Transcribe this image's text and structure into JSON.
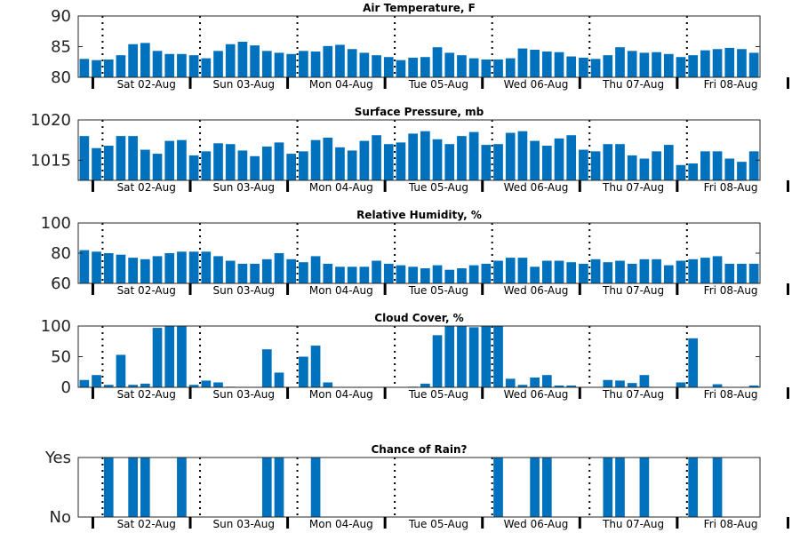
{
  "chart_data": [
    {
      "type": "bar",
      "title": "Air Temperature, F",
      "ylim": [
        80,
        90
      ],
      "yticks": [
        "80",
        "85",
        "90"
      ],
      "color": "#0072BD",
      "values": [
        83.0,
        82.8,
        82.9,
        83.6,
        85.4,
        85.6,
        84.3,
        83.8,
        83.8,
        83.6,
        83.1,
        84.3,
        85.4,
        85.8,
        85.2,
        84.3,
        84.0,
        83.8,
        84.3,
        84.2,
        85.1,
        85.3,
        84.6,
        84.0,
        83.6,
        83.3,
        82.8,
        83.2,
        83.3,
        84.9,
        84.0,
        83.6,
        83.1,
        82.9,
        82.9,
        83.1,
        84.7,
        84.5,
        84.2,
        84.1,
        83.4,
        83.2,
        83.0,
        83.6,
        84.9,
        84.3,
        84.0,
        84.1,
        83.8,
        83.3,
        83.6,
        84.4,
        84.6,
        84.8,
        84.6,
        84.0
      ]
    },
    {
      "type": "bar",
      "title": "Surface Pressure, mb",
      "ylim": [
        1012.5,
        1020
      ],
      "yticks": [
        "1015",
        "1020"
      ],
      "color": "#0072BD",
      "values": [
        1018.0,
        1016.5,
        1016.8,
        1018.0,
        1018.0,
        1016.3,
        1015.8,
        1017.4,
        1017.5,
        1015.6,
        1016.1,
        1017.1,
        1017.0,
        1016.2,
        1015.5,
        1016.7,
        1017.2,
        1015.8,
        1016.1,
        1017.5,
        1017.8,
        1016.6,
        1016.2,
        1017.4,
        1018.1,
        1017.0,
        1017.2,
        1018.3,
        1018.6,
        1017.6,
        1017.0,
        1018.0,
        1018.5,
        1016.9,
        1017.0,
        1018.4,
        1018.6,
        1017.4,
        1016.8,
        1017.7,
        1018.1,
        1016.3,
        1016.1,
        1017.0,
        1017.0,
        1015.6,
        1015.2,
        1016.1,
        1016.9,
        1014.4,
        1014.6,
        1016.1,
        1016.1,
        1015.2,
        1014.8,
        1016.1
      ]
    },
    {
      "type": "bar",
      "title": "Relative Humidity, %",
      "ylim": [
        60,
        100
      ],
      "yticks": [
        "60",
        "80",
        "100"
      ],
      "color": "#0072BD",
      "values": [
        82,
        81,
        80,
        79,
        77,
        76,
        78,
        80,
        81,
        81,
        81,
        78,
        75,
        73,
        73,
        76,
        80,
        76,
        74,
        78,
        73,
        71,
        71,
        71,
        75,
        73,
        72,
        71,
        70,
        72,
        69,
        70,
        72,
        73,
        75,
        77,
        77,
        71,
        75,
        75,
        74,
        73,
        76,
        74,
        75,
        73,
        76,
        76,
        72,
        75,
        76,
        77,
        78,
        73,
        73,
        73
      ]
    },
    {
      "type": "bar",
      "title": "Cloud Cover, %",
      "ylim": [
        0,
        100
      ],
      "yticks": [
        "0",
        "50",
        "100"
      ],
      "color": "#0072BD",
      "values": [
        12,
        20,
        4,
        53,
        4,
        6,
        97,
        100,
        100,
        4,
        11,
        8,
        1,
        0,
        0,
        62,
        24,
        0,
        50,
        68,
        8,
        0,
        0,
        0,
        0,
        0,
        0,
        1,
        6,
        85,
        100,
        100,
        98,
        100,
        100,
        14,
        4,
        16,
        20,
        3,
        3,
        0,
        0,
        12,
        11,
        7,
        20,
        0,
        0,
        8,
        80,
        0,
        5,
        0,
        0,
        3
      ]
    },
    {
      "type": "bar",
      "title": "Chance of Rain?",
      "ylim": [
        0,
        1
      ],
      "yticks": [
        "No",
        "Yes"
      ],
      "color": "#0072BD",
      "values": [
        0,
        0,
        1,
        0,
        1,
        1,
        0,
        0,
        1,
        0,
        0,
        0,
        0,
        0,
        0,
        1,
        1,
        0,
        0,
        1,
        0,
        0,
        0,
        0,
        0,
        0,
        0,
        0,
        0,
        0,
        0,
        0,
        0,
        0,
        1,
        0,
        0,
        1,
        1,
        0,
        0,
        0,
        0,
        1,
        1,
        0,
        1,
        0,
        0,
        0,
        1,
        0,
        1,
        0,
        0,
        0
      ]
    }
  ],
  "day_labels": [
    "Sat 02-Aug",
    "Sun 03-Aug",
    "Mon 04-Aug",
    "Tue 05-Aug",
    "Wed 06-Aug",
    "Thu 07-Aug",
    "Fri 08-Aug"
  ]
}
